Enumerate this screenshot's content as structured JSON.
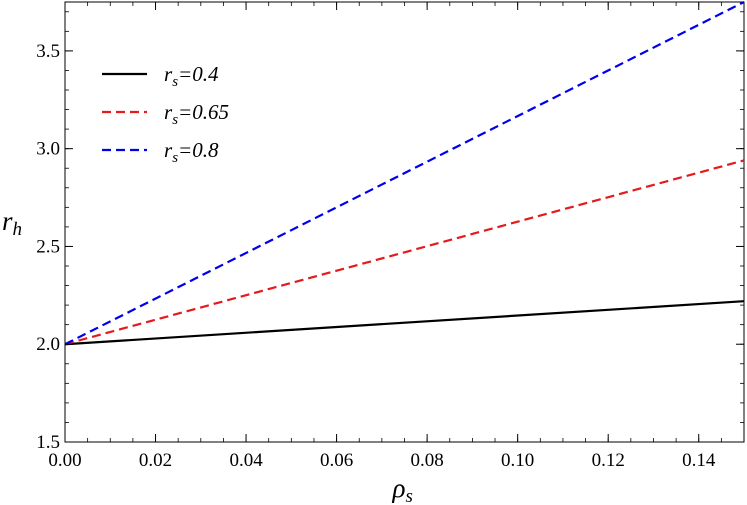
{
  "chart_data": {
    "type": "line",
    "title": "",
    "xlabel": {
      "base": "ρ",
      "sub": "s"
    },
    "ylabel": {
      "base": "r",
      "sub": "h"
    },
    "xlim": [
      0,
      0.15
    ],
    "ylim": [
      1.5,
      3.75
    ],
    "x_ticks": [
      "0.00",
      "0.02",
      "0.04",
      "0.06",
      "0.08",
      "0.10",
      "0.12",
      "0.14"
    ],
    "y_ticks": [
      "1.5",
      "2.0",
      "2.5",
      "3.0",
      "3.5"
    ],
    "grid": false,
    "legend_position": "top-left",
    "series": [
      {
        "label_var": "r",
        "label_sub": "s",
        "label_val": "=0.4",
        "color": "#000000",
        "dash": "solid",
        "x": [
          0,
          0.15
        ],
        "y": [
          2.0,
          2.22
        ]
      },
      {
        "label_var": "r",
        "label_sub": "s",
        "label_val": "=0.65",
        "color": "#e41a1c",
        "dash": "dashed",
        "x": [
          0,
          0.15
        ],
        "y": [
          2.0,
          2.94
        ]
      },
      {
        "label_var": "r",
        "label_sub": "s",
        "label_val": "=0.8",
        "color": "#0000ee",
        "dash": "dashed",
        "x": [
          0,
          0.15
        ],
        "y": [
          2.0,
          3.75
        ]
      }
    ]
  }
}
